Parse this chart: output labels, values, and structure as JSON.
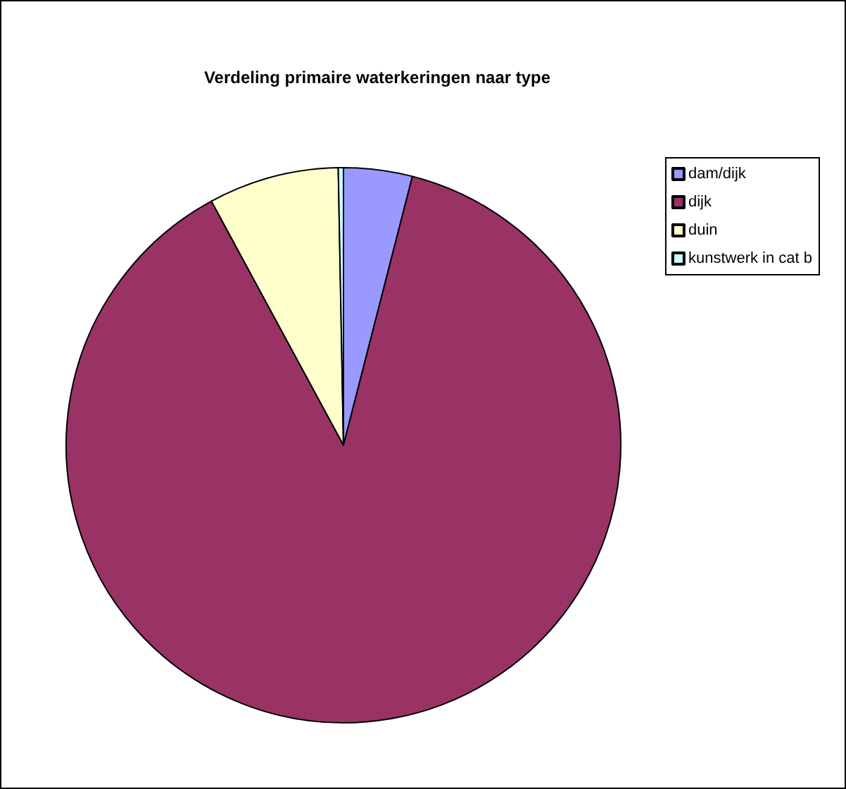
{
  "chart_data": {
    "type": "pie",
    "title": "Verdeling primaire waterkeringen naar type",
    "categories": [
      "dam/dijk",
      "dijk",
      "duin",
      "kunstwerk in cat b"
    ],
    "values": [
      4.0,
      88.1,
      7.6,
      0.3
    ],
    "colors": [
      "#9999ff",
      "#993366",
      "#ffffcc",
      "#ccffff"
    ],
    "legend": "top right"
  }
}
